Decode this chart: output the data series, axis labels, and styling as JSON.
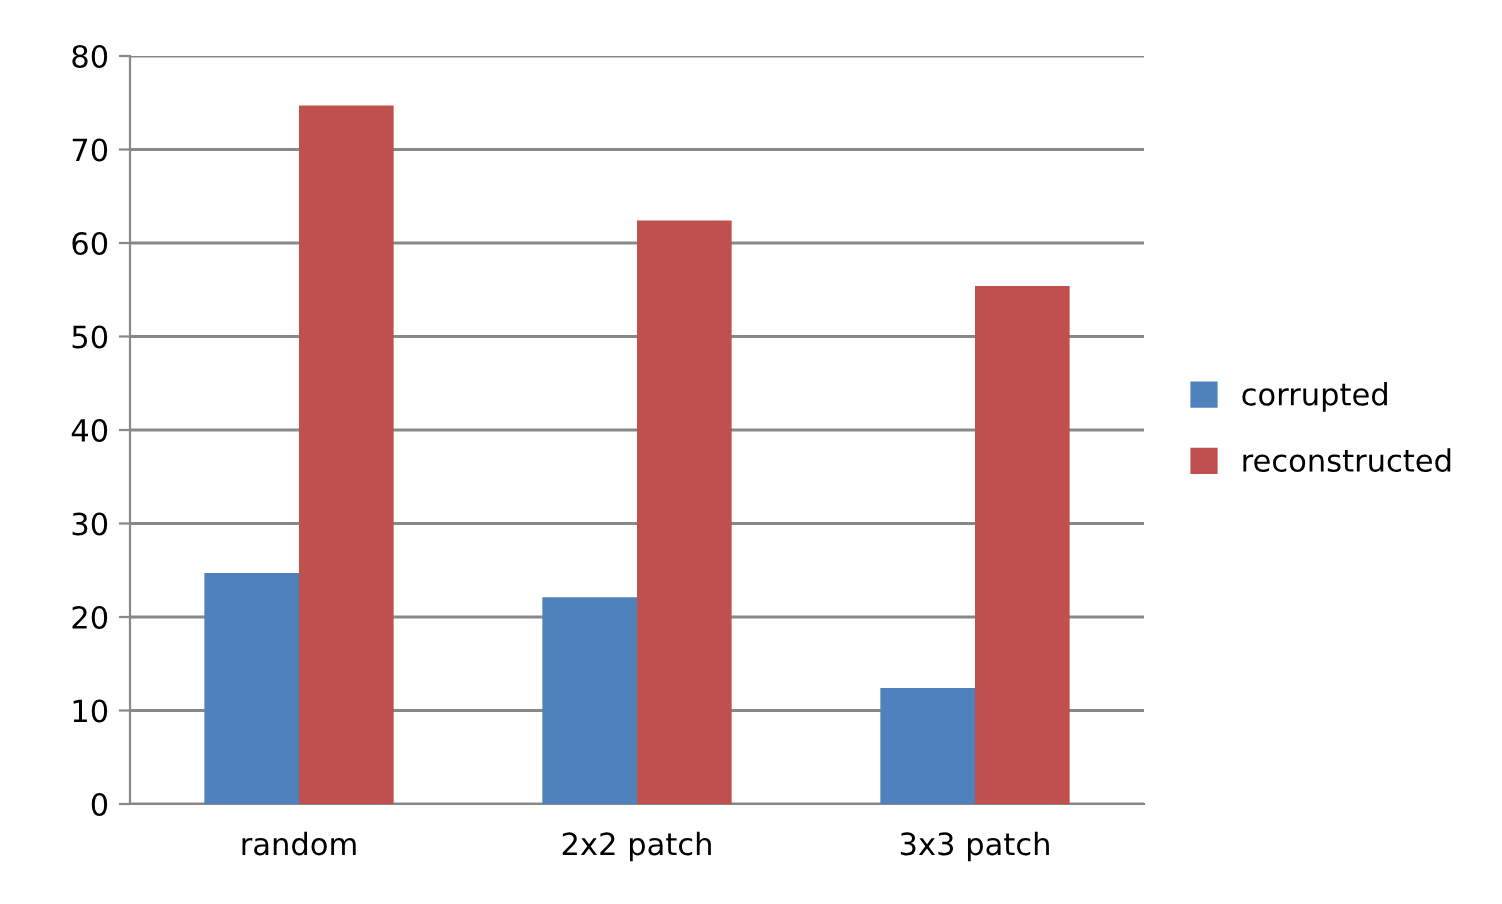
{
  "chart_data": {
    "type": "bar",
    "categories": [
      "random",
      "2x2 patch",
      "3x3 patch"
    ],
    "series": [
      {
        "name": "corrupted",
        "color": "#4f81bd",
        "values": [
          24.7,
          22.1,
          12.4
        ]
      },
      {
        "name": "reconstructed",
        "color": "#c0504d",
        "values": [
          74.7,
          62.4,
          55.4
        ]
      }
    ],
    "ylim": [
      0,
      80
    ],
    "yticks": [
      0,
      10,
      20,
      30,
      40,
      50,
      60,
      70,
      80
    ],
    "grid": "y",
    "legend": "right"
  }
}
